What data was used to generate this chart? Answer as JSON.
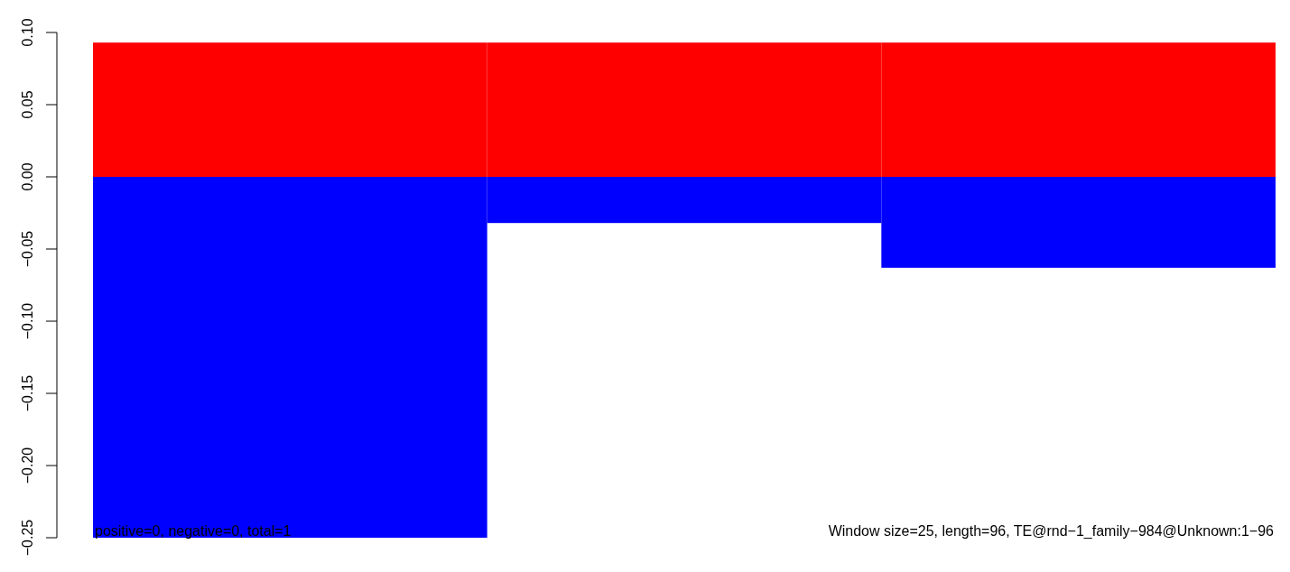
{
  "chart_data": {
    "type": "bar",
    "stacked": true,
    "categories": [
      null,
      null,
      null
    ],
    "series": [
      {
        "color": "#ff0000",
        "values": [
          0.093,
          0.093,
          0.093
        ]
      },
      {
        "color": "#0000ff",
        "values": [
          -0.25,
          -0.032,
          -0.063
        ]
      }
    ],
    "ylim": [
      -0.25,
      0.1
    ],
    "yticks": [
      {
        "value": -0.25,
        "label": "−0.25"
      },
      {
        "value": -0.2,
        "label": "−0.20"
      },
      {
        "value": -0.15,
        "label": "−0.15"
      },
      {
        "value": -0.1,
        "label": "−0.10"
      },
      {
        "value": -0.05,
        "label": "−0.05"
      },
      {
        "value": 0,
        "label": "0.00"
      },
      {
        "value": 0.05,
        "label": "0.05"
      },
      {
        "value": 0.1,
        "label": "0.10"
      }
    ],
    "tick_labels": "y",
    "annotations": [
      "positive=0, negative=0, total=1",
      "Window size=25, length=96, TE@rnd−1_family−984@Unknown:1−96"
    ]
  }
}
